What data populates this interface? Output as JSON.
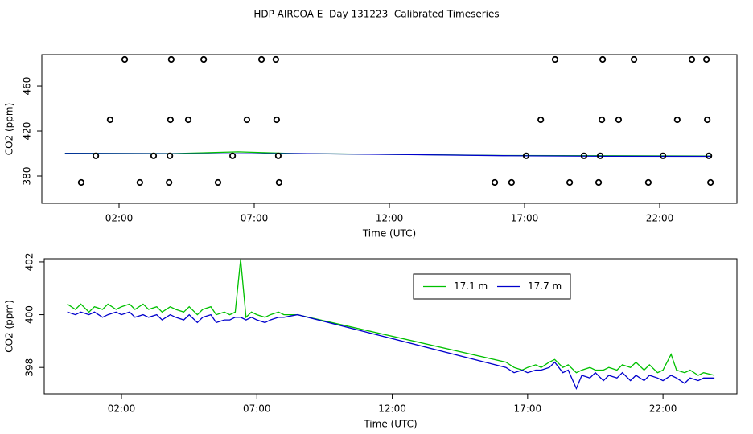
{
  "chart_data": [
    {
      "type": "scatter",
      "title": "HDP AIRCOA E  Day 131223  Calibrated Timeseries",
      "x_label": "Time (UTC)",
      "y_label": "CO2 (ppm)",
      "xlim": [
        -0.857,
        24.857
      ],
      "ylim": [
        355.7,
        487.9
      ],
      "xticks": [
        {
          "value": 2,
          "label": "02:00"
        },
        {
          "value": 7,
          "label": "07:00"
        },
        {
          "value": 12,
          "label": "12:00"
        },
        {
          "value": 17,
          "label": "17:00"
        },
        {
          "value": 22,
          "label": "22:00"
        }
      ],
      "yticks": [
        380,
        420,
        460
      ],
      "color": "#000000",
      "x": [
        2.21,
        3.93,
        5.13,
        7.27,
        7.8,
        18.13,
        19.89,
        21.05,
        23.19,
        23.73,
        1.67,
        3.9,
        4.56,
        6.73,
        7.83,
        17.6,
        19.86,
        20.48,
        22.65,
        23.76,
        1.14,
        3.28,
        3.88,
        6.2,
        7.89,
        17.06,
        19.2,
        19.8,
        22.12,
        23.82,
        0.6,
        2.77,
        3.85,
        5.66,
        7.92,
        15.9,
        16.52,
        18.67,
        19.74,
        21.58,
        23.88
      ],
      "values": [
        483.6,
        483.6,
        483.6,
        483.6,
        483.6,
        483.6,
        483.6,
        483.6,
        483.6,
        483.6,
        430,
        430,
        430,
        430,
        430,
        430,
        430,
        430,
        430,
        430,
        398,
        398,
        398,
        398,
        398,
        398,
        398,
        398,
        398,
        398,
        374.3,
        374.3,
        374.3,
        374.3,
        374.3,
        374.3,
        374.3,
        374.3,
        374.3,
        374.3,
        374.3
      ],
      "lines": {
        "x": [
          0,
          4,
          6.4,
          8.5,
          12,
          16.2,
          20,
          23.9
        ],
        "series": [
          {
            "color": "#00c000",
            "values": [
              400.3,
              400.0,
              401.5,
              400.0,
              399.3,
              398.2,
              398.0,
              397.7
            ]
          },
          {
            "color": "#0000cc",
            "values": [
              400.1,
              399.8,
              399.8,
              400.0,
              399.2,
              398.1,
              397.6,
              397.5
            ]
          }
        ]
      }
    },
    {
      "type": "line",
      "x_label": "Time (UTC)",
      "y_label": "CO2 (ppm)",
      "xlim": [
        -0.853,
        24.73
      ],
      "ylim": [
        397,
        402.12
      ],
      "xticks": [
        {
          "value": 2,
          "label": "02:00"
        },
        {
          "value": 7,
          "label": "07:00"
        },
        {
          "value": 12,
          "label": "12:00"
        },
        {
          "value": 17,
          "label": "17:00"
        },
        {
          "value": 22,
          "label": "22:00"
        }
      ],
      "yticks": [
        398,
        400,
        402
      ],
      "legend": "top",
      "x": [
        0,
        0.3,
        0.5,
        0.8,
        1,
        1.3,
        1.5,
        1.8,
        2,
        2.3,
        2.5,
        2.8,
        3,
        3.3,
        3.5,
        3.8,
        4,
        4.3,
        4.5,
        4.8,
        5,
        5.3,
        5.5,
        5.8,
        6,
        6.2,
        6.4,
        6.6,
        6.8,
        7,
        7.3,
        7.5,
        7.8,
        8,
        8.5,
        16.2,
        16.5,
        16.8,
        17,
        17.3,
        17.5,
        17.8,
        18,
        18.3,
        18.5,
        18.8,
        19,
        19.3,
        19.5,
        19.8,
        20,
        20.3,
        20.5,
        20.8,
        21,
        21.3,
        21.5,
        21.8,
        22,
        22.3,
        22.5,
        22.8,
        23,
        23.3,
        23.5,
        23.9
      ],
      "series": [
        {
          "name": "17.1 m",
          "color": "#00c000",
          "values": [
            400.4,
            400.2,
            400.4,
            400.1,
            400.3,
            400.2,
            400.4,
            400.2,
            400.3,
            400.4,
            400.2,
            400.4,
            400.2,
            400.3,
            400.1,
            400.3,
            400.2,
            400.1,
            400.3,
            400.0,
            400.2,
            400.3,
            400.0,
            400.1,
            400.0,
            400.1,
            402.1,
            399.9,
            400.1,
            400.0,
            399.9,
            400.0,
            400.1,
            400.0,
            400.0,
            398.2,
            398.0,
            397.9,
            398.0,
            398.1,
            398.0,
            398.2,
            398.3,
            398.0,
            398.1,
            397.8,
            397.9,
            398.0,
            397.9,
            397.9,
            398.0,
            397.9,
            398.1,
            398.0,
            398.2,
            397.9,
            398.1,
            397.8,
            397.9,
            398.5,
            397.9,
            397.8,
            397.9,
            397.7,
            397.8,
            397.7
          ]
        },
        {
          "name": "17.7 m",
          "color": "#0000cc",
          "values": [
            400.1,
            400.0,
            400.1,
            400.0,
            400.1,
            399.9,
            400.0,
            400.1,
            400.0,
            400.1,
            399.9,
            400.0,
            399.9,
            400.0,
            399.8,
            400.0,
            399.9,
            399.8,
            400.0,
            399.7,
            399.9,
            400.0,
            399.7,
            399.8,
            399.8,
            399.9,
            399.9,
            399.8,
            399.9,
            399.8,
            399.7,
            399.8,
            399.9,
            399.9,
            400.0,
            398.0,
            397.8,
            397.9,
            397.8,
            397.9,
            397.9,
            398.0,
            398.2,
            397.8,
            397.9,
            397.2,
            397.7,
            397.6,
            397.8,
            397.5,
            397.7,
            397.6,
            397.8,
            397.5,
            397.7,
            397.5,
            397.7,
            397.6,
            397.5,
            397.7,
            397.6,
            397.4,
            397.6,
            397.5,
            397.6,
            397.6
          ]
        }
      ]
    }
  ]
}
